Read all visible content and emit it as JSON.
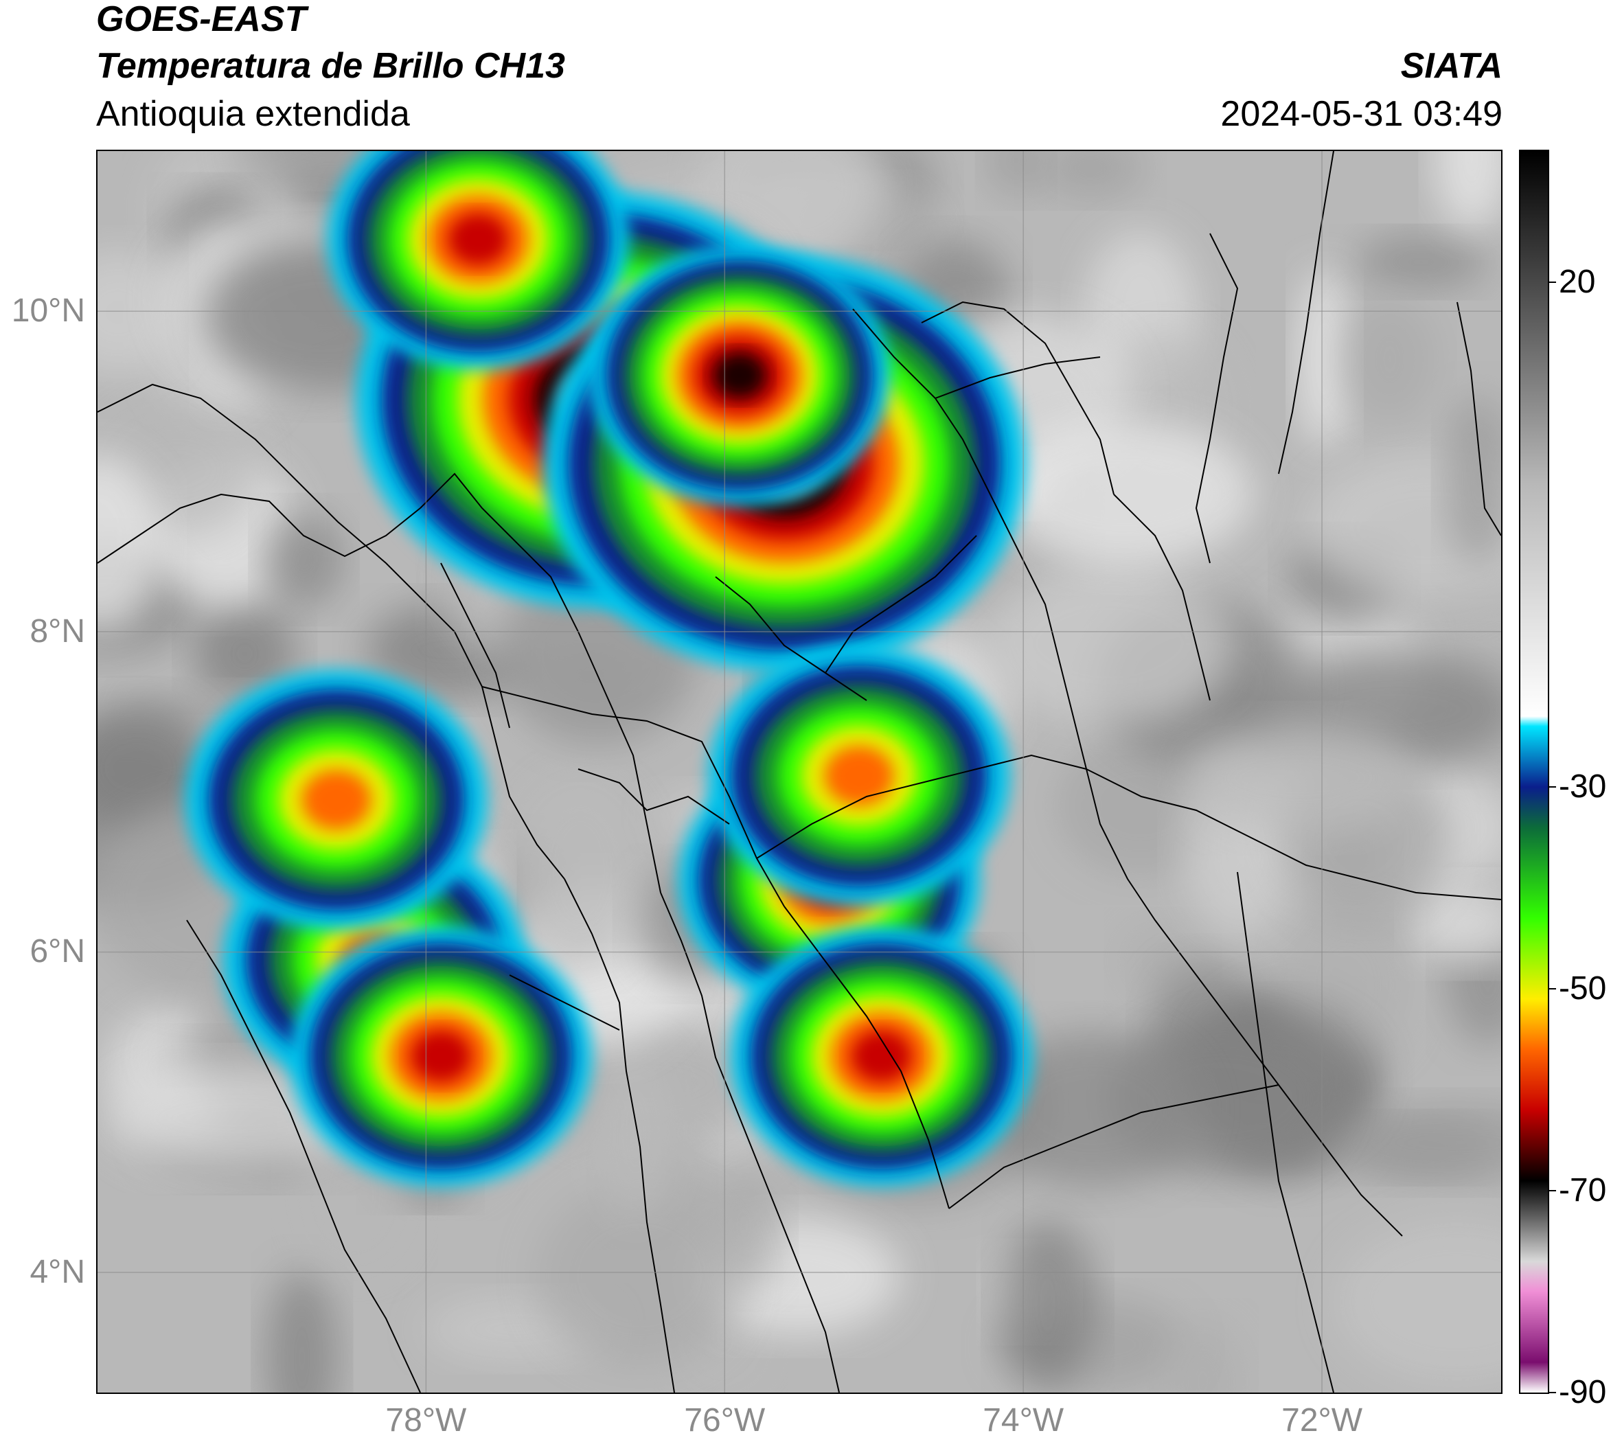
{
  "header": {
    "satellite": "GOES-EAST",
    "product": "Temperatura de Brillo CH13",
    "region": "Antioquia extendida",
    "organization": "SIATA",
    "timestamp": "2024-05-31 03:49"
  },
  "map": {
    "lat_range": [
      3.25,
      11.0
    ],
    "lon_range": [
      -80.2,
      -70.8
    ],
    "lat_ticks": [
      {
        "value": 10,
        "label": "10°N"
      },
      {
        "value": 8,
        "label": "8°N"
      },
      {
        "value": 6,
        "label": "6°N"
      },
      {
        "value": 4,
        "label": "4°N"
      }
    ],
    "lon_ticks": [
      {
        "value": -78,
        "label": "78°W"
      },
      {
        "value": -76,
        "label": "76°W"
      },
      {
        "value": -74,
        "label": "74°W"
      },
      {
        "value": -72,
        "label": "72°W"
      }
    ],
    "gridlines": true
  },
  "colorbar": {
    "vmin": -90,
    "vmax": 33,
    "ticks": [
      {
        "value": 20,
        "label": "20"
      },
      {
        "value": -30,
        "label": "-30"
      },
      {
        "value": -50,
        "label": "-50"
      },
      {
        "value": -70,
        "label": "-70"
      },
      {
        "value": -90,
        "label": "-90"
      }
    ],
    "stops": [
      {
        "t": -90,
        "color": "#ffffff"
      },
      {
        "t": -87,
        "color": "#7a0d6e"
      },
      {
        "t": -80,
        "color": "#f08fd6"
      },
      {
        "t": -77,
        "color": "#d9d9d9"
      },
      {
        "t": -72,
        "color": "#505050"
      },
      {
        "t": -69,
        "color": "#000000"
      },
      {
        "t": -62,
        "color": "#c80000"
      },
      {
        "t": -56,
        "color": "#ff6600"
      },
      {
        "t": -51,
        "color": "#ffee00"
      },
      {
        "t": -43,
        "color": "#33ff00"
      },
      {
        "t": -34,
        "color": "#0c6b3a"
      },
      {
        "t": -30,
        "color": "#0a1e8c"
      },
      {
        "t": -24,
        "color": "#00e6ff"
      },
      {
        "t": -23,
        "color": "#ffffff"
      },
      {
        "t": 0,
        "color": "#b8b8b8"
      },
      {
        "t": 33,
        "color": "#000000"
      }
    ]
  },
  "storm_cells": [
    {
      "lat": 9.45,
      "lon": -76.85,
      "peak": -74
    },
    {
      "lat": 9.05,
      "lon": -75.6,
      "peak": -75
    },
    {
      "lat": 10.45,
      "lon": -77.65,
      "peak": -66
    },
    {
      "lat": 9.6,
      "lon": -75.9,
      "peak": -70
    },
    {
      "lat": 6.45,
      "lon": -75.3,
      "peak": -66
    },
    {
      "lat": 7.1,
      "lon": -75.1,
      "peak": -60
    },
    {
      "lat": 5.95,
      "lon": -78.35,
      "peak": -58
    },
    {
      "lat": 6.95,
      "lon": -78.6,
      "peak": -56
    },
    {
      "lat": 5.35,
      "lon": -77.9,
      "peak": -64
    },
    {
      "lat": 5.35,
      "lon": -74.95,
      "peak": -64
    }
  ]
}
